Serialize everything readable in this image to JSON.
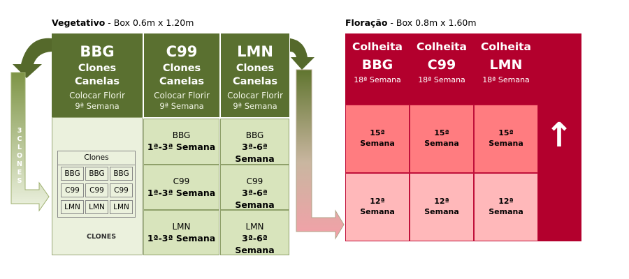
{
  "vegetativo": {
    "title_bold": "Vegetativo",
    "title_rest": " - Box 0.6m x 1.20m",
    "columns": [
      {
        "strain": "BBG",
        "line2": "Clones",
        "line3": "Canelas",
        "line4": "Colocar Florir",
        "line5": "9ª Semana"
      },
      {
        "strain": "C99",
        "line2": "Clones",
        "line3": "Canelas",
        "line4": "Colocar Florir",
        "line5": "9ª Semana"
      },
      {
        "strain": "LMN",
        "line2": "Clones",
        "line3": "Canelas",
        "line4": "Colocar Florir",
        "line5": "9ª Semana"
      }
    ],
    "grid": [
      [
        {
          "strain": "BBG",
          "weeks": "1ª-3ª Semana"
        },
        {
          "strain": "BBG",
          "weeks": "3ª-6ª Semana"
        }
      ],
      [
        {
          "strain": "C99",
          "weeks": "1ª-3ª Semana"
        },
        {
          "strain": "C99",
          "weeks": "3ª-6ª Semana"
        }
      ],
      [
        {
          "strain": "LMN",
          "weeks": "1ª-3ª Semana"
        },
        {
          "strain": "LMN",
          "weeks": "3ª-6ª Semana"
        }
      ]
    ],
    "clones_table": {
      "header": "Clones",
      "rows": [
        [
          "BBG",
          "BBG",
          "BBG"
        ],
        [
          "C99",
          "C99",
          "C99"
        ],
        [
          "LMN",
          "LMN",
          "LMN"
        ]
      ]
    },
    "clones_arrow_label": "CLONES",
    "side_arrow_label": "3 CLONES"
  },
  "floracao": {
    "title_bold": "Floração",
    "title_rest": " - Box 0.8m x 1.60m",
    "columns": [
      {
        "label": "Colheita",
        "strain": "BBG",
        "week": "18ª Semana"
      },
      {
        "label": "Colheita",
        "strain": "C99",
        "week": "18ª Semana"
      },
      {
        "label": "Colheita",
        "strain": "LMN",
        "week": "18ª Semana"
      }
    ],
    "rows": [
      {
        "number": "15ª",
        "label": "Semana"
      },
      {
        "number": "12ª",
        "label": "Semana"
      }
    ],
    "up_arrow": "↑"
  },
  "colors": {
    "veg_header": "#5a7030",
    "veg_cell": "#d8e4bc",
    "veg_light": "#ebf1dd",
    "flo_dark": "#b3002d",
    "flo_mid": "#ff7c80",
    "flo_light": "#ffb8ba"
  }
}
